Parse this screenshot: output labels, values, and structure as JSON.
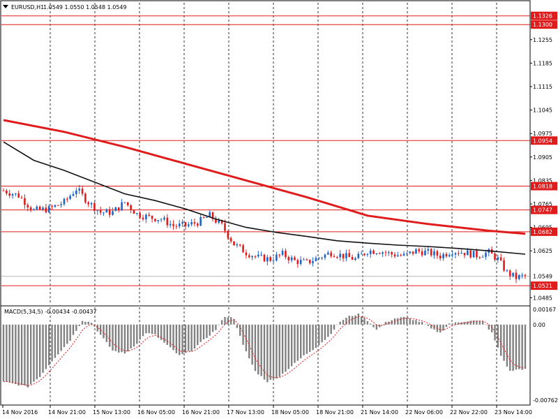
{
  "header": {
    "symbol": "EURUSD,H1",
    "ohlc": "1.0549 1.0550 1.0548 1.0549",
    "macd_title": "MACD(5,34,5) -0.00434 -0.00437"
  },
  "colors": {
    "background": "#ffffff",
    "bull_candle": "#1e64c8",
    "bear_candle": "#e01b1b",
    "level_line": "#e01b1b",
    "ma_slow": "#e01b1b",
    "ma_fast": "#111111",
    "histogram": "#808080",
    "signal": "#e01b1b"
  },
  "chart_data": [
    {
      "type": "candlestick",
      "title": "EURUSD,H1",
      "y_range": [
        1.0465,
        1.1365
      ],
      "price_scale_ticks": [
        "1.1255",
        "1.1185",
        "1.1115",
        "1.1045",
        "1.0975",
        "1.0905",
        "1.0835",
        "1.0765",
        "1.0695",
        "1.0625",
        "1.0485"
      ],
      "levels": [
        {
          "value": 1.1326,
          "label": "1.1326"
        },
        {
          "value": 1.13,
          "label": "1.1300"
        },
        {
          "value": 1.0954,
          "label": "1.0954"
        },
        {
          "value": 1.0818,
          "label": "1.0818"
        },
        {
          "value": 1.0747,
          "label": "1.0747"
        },
        {
          "value": 1.0682,
          "label": "1.0682"
        },
        {
          "value": 1.0521,
          "label": "1.0521"
        }
      ],
      "current_price": {
        "value": 1.0549,
        "label": "1.0549"
      },
      "time_labels": [
        "14 Nov 2016",
        "14 Nov 21:00",
        "15 Nov 13:00",
        "16 Nov 05:00",
        "16 Nov 21:00",
        "17 Nov 13:00",
        "18 Nov 05:00",
        "18 Nov 21:00",
        "21 Nov 14:00",
        "22 Nov 06:00",
        "22 Nov 22:00",
        "23 Nov 14:00"
      ],
      "close_path": [
        [
          0,
          1.0805
        ],
        [
          5,
          1.079
        ],
        [
          10,
          1.0745
        ],
        [
          15,
          1.075
        ],
        [
          20,
          1.077
        ],
        [
          24,
          1.081
        ],
        [
          28,
          1.077
        ],
        [
          32,
          1.074
        ],
        [
          36,
          1.074
        ],
        [
          40,
          1.077
        ],
        [
          44,
          1.0735
        ],
        [
          48,
          1.0725
        ],
        [
          52,
          1.072
        ],
        [
          56,
          1.07
        ],
        [
          60,
          1.07
        ],
        [
          64,
          1.071
        ],
        [
          68,
          1.073
        ],
        [
          72,
          1.07
        ],
        [
          76,
          1.0645
        ],
        [
          80,
          1.062
        ],
        [
          84,
          1.0605
        ],
        [
          88,
          1.06
        ],
        [
          92,
          1.0615
        ],
        [
          96,
          1.0595
        ],
        [
          100,
          1.059
        ],
        [
          104,
          1.0605
        ],
        [
          108,
          1.062
        ],
        [
          112,
          1.061
        ],
        [
          116,
          1.06
        ],
        [
          120,
          1.0625
        ],
        [
          124,
          1.0625
        ],
        [
          128,
          1.0615
        ],
        [
          132,
          1.061
        ],
        [
          136,
          1.0625
        ],
        [
          140,
          1.062
        ],
        [
          144,
          1.061
        ],
        [
          148,
          1.0625
        ],
        [
          152,
          1.062
        ],
        [
          156,
          1.0612
        ],
        [
          160,
          1.062
        ],
        [
          163,
          1.06
        ],
        [
          166,
          1.056
        ],
        [
          169,
          1.0545
        ],
        [
          172,
          1.055
        ]
      ],
      "series": [
        {
          "name": "",
          "kind": "ma_slow",
          "points": [
            [
              0,
              1.1015
            ],
            [
              20,
              1.098
            ],
            [
              40,
              1.0935
            ],
            [
              60,
              1.0885
            ],
            [
              80,
              1.0835
            ],
            [
              100,
              1.0785
            ],
            [
              120,
              1.073
            ],
            [
              140,
              1.0705
            ],
            [
              160,
              1.0685
            ],
            [
              172,
              1.0676
            ]
          ]
        },
        {
          "name": "",
          "kind": "ma_fast",
          "points": [
            [
              0,
              1.095
            ],
            [
              10,
              1.0895
            ],
            [
              20,
              1.0865
            ],
            [
              30,
              1.083
            ],
            [
              40,
              1.0795
            ],
            [
              50,
              1.0775
            ],
            [
              60,
              1.075
            ],
            [
              70,
              1.072
            ],
            [
              80,
              1.0695
            ],
            [
              90,
              1.068
            ],
            [
              100,
              1.0668
            ],
            [
              110,
              1.0655
            ],
            [
              120,
              1.0648
            ],
            [
              130,
              1.0642
            ],
            [
              140,
              1.0638
            ],
            [
              150,
              1.0632
            ],
            [
              160,
              1.0625
            ],
            [
              172,
              1.0615
            ]
          ]
        }
      ]
    },
    {
      "type": "bar",
      "title": "MACD(5,34,5) -0.00434 -0.00437",
      "y_range": [
        -0.00762,
        0.00167
      ],
      "scale_ticks": [
        {
          "value": 0.00167,
          "label": "0.00167"
        },
        {
          "value": 0.0,
          "label": "0.00"
        },
        {
          "value": -0.00762,
          "label": "-0.00762"
        }
      ],
      "histogram_path": [
        [
          0,
          -0.0055
        ],
        [
          8,
          -0.006
        ],
        [
          12,
          -0.005
        ],
        [
          16,
          -0.0035
        ],
        [
          22,
          -0.0015
        ],
        [
          26,
          0.0004
        ],
        [
          29,
          0.0002
        ],
        [
          32,
          -0.001
        ],
        [
          36,
          -0.0025
        ],
        [
          40,
          -0.0028
        ],
        [
          44,
          -0.0018
        ],
        [
          47,
          -0.0008
        ],
        [
          50,
          -0.001
        ],
        [
          54,
          -0.002
        ],
        [
          58,
          -0.003
        ],
        [
          62,
          -0.0025
        ],
        [
          66,
          -0.0015
        ],
        [
          70,
          -0.0005
        ],
        [
          73,
          0.0008
        ],
        [
          76,
          0.0006
        ],
        [
          79,
          -0.002
        ],
        [
          83,
          -0.0045
        ],
        [
          87,
          -0.0055
        ],
        [
          91,
          -0.005
        ],
        [
          95,
          -0.004
        ],
        [
          99,
          -0.003
        ],
        [
          103,
          -0.0022
        ],
        [
          107,
          -0.0012
        ],
        [
          111,
          0.0003
        ],
        [
          114,
          0.0008
        ],
        [
          117,
          0.001
        ],
        [
          120,
          0.0004
        ],
        [
          123,
          -0.0005
        ],
        [
          126,
          0.0002
        ],
        [
          129,
          0.0006
        ],
        [
          132,
          0.0007
        ],
        [
          135,
          0.0005
        ],
        [
          138,
          0.0002
        ],
        [
          141,
          -0.0004
        ],
        [
          144,
          -0.0008
        ],
        [
          147,
          0.0001
        ],
        [
          150,
          0.0002
        ],
        [
          154,
          0.0004
        ],
        [
          158,
          0.0003
        ],
        [
          161,
          -0.0008
        ],
        [
          164,
          -0.003
        ],
        [
          167,
          -0.0045
        ],
        [
          170,
          -0.0043
        ],
        [
          172,
          -0.0043
        ]
      ]
    }
  ]
}
